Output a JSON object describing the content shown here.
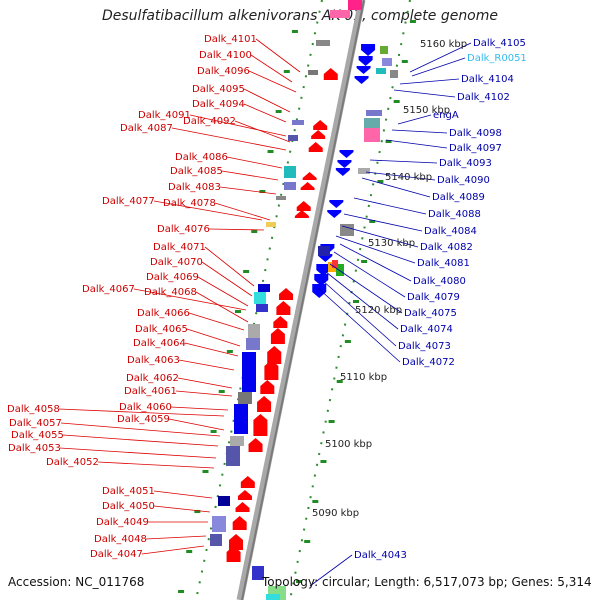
{
  "title": "Desulfatibacillum alkenivorans AK-01, complete genome",
  "footer": {
    "accession": "Accession: NC_011768",
    "topology": "Topology: circular; Length: 6,517,073 bp; Genes: 5,314"
  },
  "colors": {
    "left_label": "#cc0000",
    "right_label": "#0000aa",
    "rna_label": "#33bbee",
    "strand_forward": "#ff0000",
    "strand_reverse": "#0000ff",
    "tick": "#228b22",
    "backbone": "#999999"
  },
  "scale_labels": [
    "5160 kbp",
    "5150 kbp",
    "5140 kbp",
    "5130 kbp",
    "5120 kbp",
    "5110 kbp",
    "5100 kbp",
    "5090 kbp"
  ],
  "left_labels": [
    "Dalk_4101",
    "Dalk_4100",
    "Dalk_4096",
    "Dalk_4095",
    "Dalk_4094",
    "Dalk_4091",
    "Dalk_4092",
    "Dalk_4087",
    "Dalk_4086",
    "Dalk_4085",
    "Dalk_4083",
    "Dalk_4077",
    "Dalk_4078",
    "Dalk_4076",
    "Dalk_4071",
    "Dalk_4070",
    "Dalk_4069",
    "Dalk_4067",
    "Dalk_4068",
    "Dalk_4066",
    "Dalk_4065",
    "Dalk_4064",
    "Dalk_4063",
    "Dalk_4062",
    "Dalk_4061",
    "Dalk_4060",
    "Dalk_4058",
    "Dalk_4059",
    "Dalk_4057",
    "Dalk_4055",
    "Dalk_4053",
    "Dalk_4052",
    "Dalk_4051",
    "Dalk_4050",
    "Dalk_4049",
    "Dalk_4048",
    "Dalk_4047"
  ],
  "right_labels": [
    "Dalk_4105",
    "Dalk_R0051",
    "Dalk_4104",
    "Dalk_4102",
    "engA",
    "Dalk_4098",
    "Dalk_4097",
    "Dalk_4093",
    "Dalk_4090",
    "Dalk_4089",
    "Dalk_4088",
    "Dalk_4084",
    "Dalk_4082",
    "Dalk_4081",
    "Dalk_4080",
    "Dalk_4079",
    "Dalk_4075",
    "Dalk_4074",
    "Dalk_4073",
    "Dalk_4072",
    "Dalk_4043"
  ]
}
